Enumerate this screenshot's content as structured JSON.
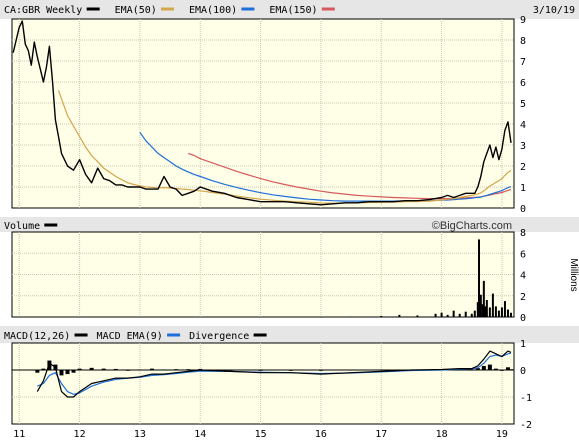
{
  "chart_data": [
    {
      "type": "line",
      "panel": "price",
      "title": "CA:GBR Weekly",
      "date_label": "3/10/19",
      "x_ticks": [
        "11",
        "12",
        "13",
        "14",
        "15",
        "16",
        "17",
        "18",
        "19"
      ],
      "ylim": [
        0,
        9
      ],
      "y_ticks": [
        0,
        1,
        2,
        3,
        4,
        5,
        6,
        7,
        8,
        9
      ],
      "grid": true,
      "legend_position": "top",
      "x": [
        10.9,
        11.0,
        11.05,
        11.1,
        11.15,
        11.2,
        11.25,
        11.3,
        11.35,
        11.4,
        11.45,
        11.5,
        11.55,
        11.6,
        11.65,
        11.7,
        11.75,
        11.8,
        11.9,
        12.0,
        12.1,
        12.2,
        12.3,
        12.4,
        12.5,
        12.6,
        12.7,
        12.8,
        12.9,
        13.0,
        13.1,
        13.2,
        13.3,
        13.4,
        13.5,
        13.6,
        13.7,
        13.8,
        13.9,
        14.0,
        14.2,
        14.4,
        14.6,
        14.8,
        15.0,
        15.2,
        15.4,
        15.6,
        15.8,
        16.0,
        16.2,
        16.4,
        16.6,
        16.8,
        17.0,
        17.2,
        17.4,
        17.6,
        17.8,
        18.0,
        18.1,
        18.2,
        18.3,
        18.4,
        18.5,
        18.55,
        18.6,
        18.65,
        18.7,
        18.75,
        18.8,
        18.85,
        18.9,
        18.95,
        19.0,
        19.05,
        19.1,
        19.15
      ],
      "series": [
        {
          "name": "CA:GBR Weekly",
          "color": "#000000",
          "values": [
            7.4,
            8.6,
            8.9,
            7.8,
            7.5,
            6.8,
            7.9,
            7.2,
            6.6,
            6.0,
            6.7,
            7.7,
            6.1,
            4.2,
            3.4,
            2.6,
            2.3,
            2.0,
            1.8,
            2.3,
            1.6,
            1.2,
            1.9,
            1.4,
            1.3,
            1.1,
            1.1,
            1.0,
            1.0,
            1.0,
            0.9,
            0.9,
            0.9,
            1.5,
            1.0,
            0.9,
            0.6,
            0.7,
            0.8,
            1.0,
            0.8,
            0.7,
            0.5,
            0.4,
            0.3,
            0.3,
            0.3,
            0.25,
            0.2,
            0.15,
            0.2,
            0.25,
            0.25,
            0.3,
            0.3,
            0.3,
            0.35,
            0.35,
            0.4,
            0.5,
            0.6,
            0.5,
            0.6,
            0.7,
            0.7,
            0.7,
            1.0,
            1.5,
            2.2,
            2.6,
            3.0,
            2.4,
            2.9,
            2.3,
            2.8,
            3.7,
            4.1,
            3.1
          ]
        },
        {
          "name": "EMA(50)",
          "color": "#d4a54c",
          "values": [
            null,
            null,
            null,
            null,
            null,
            null,
            null,
            null,
            null,
            null,
            null,
            null,
            null,
            null,
            5.6,
            5.2,
            4.8,
            4.4,
            3.9,
            3.4,
            2.9,
            2.5,
            2.2,
            1.9,
            1.7,
            1.5,
            1.35,
            1.2,
            1.12,
            1.05,
            1.0,
            0.98,
            0.96,
            0.97,
            0.95,
            0.93,
            0.9,
            0.88,
            0.85,
            0.82,
            0.74,
            0.66,
            0.57,
            0.49,
            0.42,
            0.37,
            0.33,
            0.3,
            0.27,
            0.24,
            0.23,
            0.24,
            0.25,
            0.26,
            0.27,
            0.28,
            0.3,
            0.31,
            0.33,
            0.38,
            0.42,
            0.45,
            0.5,
            0.55,
            0.6,
            0.63,
            0.67,
            0.72,
            0.82,
            0.93,
            1.05,
            1.13,
            1.22,
            1.3,
            1.4,
            1.55,
            1.7,
            1.78
          ]
        },
        {
          "name": "EMA(100)",
          "color": "#1e6fd9",
          "values": [
            null,
            null,
            null,
            null,
            null,
            null,
            null,
            null,
            null,
            null,
            null,
            null,
            null,
            null,
            null,
            null,
            null,
            null,
            null,
            null,
            null,
            null,
            null,
            null,
            null,
            null,
            null,
            null,
            null,
            3.6,
            3.2,
            2.9,
            2.6,
            2.4,
            2.2,
            2.0,
            1.85,
            1.72,
            1.6,
            1.5,
            1.3,
            1.13,
            0.98,
            0.85,
            0.73,
            0.63,
            0.55,
            0.48,
            0.42,
            0.38,
            0.35,
            0.33,
            0.33,
            0.33,
            0.33,
            0.33,
            0.34,
            0.34,
            0.35,
            0.37,
            0.38,
            0.4,
            0.42,
            0.44,
            0.47,
            0.49,
            0.5,
            0.52,
            0.56,
            0.6,
            0.65,
            0.69,
            0.74,
            0.78,
            0.83,
            0.9,
            0.97,
            1.02
          ]
        },
        {
          "name": "EMA(150)",
          "color": "#d65a5a",
          "values": [
            null,
            null,
            null,
            null,
            null,
            null,
            null,
            null,
            null,
            null,
            null,
            null,
            null,
            null,
            null,
            null,
            null,
            null,
            null,
            null,
            null,
            null,
            null,
            null,
            null,
            null,
            null,
            null,
            null,
            null,
            null,
            null,
            null,
            null,
            null,
            null,
            null,
            2.6,
            2.5,
            2.35,
            2.15,
            1.95,
            1.75,
            1.57,
            1.4,
            1.25,
            1.12,
            1.0,
            0.9,
            0.8,
            0.72,
            0.66,
            0.6,
            0.56,
            0.53,
            0.5,
            0.48,
            0.46,
            0.45,
            0.45,
            0.45,
            0.46,
            0.47,
            0.48,
            0.5,
            0.51,
            0.52,
            0.53,
            0.56,
            0.59,
            0.62,
            0.65,
            0.68,
            0.71,
            0.74,
            0.79,
            0.84,
            0.88
          ]
        }
      ]
    },
    {
      "type": "bar",
      "panel": "volume",
      "title": "Volume",
      "watermark": "©BigCharts.com",
      "ylabel": "Millions",
      "ylim": [
        0,
        8
      ],
      "y_ticks": [
        0,
        2,
        4,
        6,
        8
      ],
      "grid": true,
      "series": [
        {
          "name": "Volume",
          "color": "#000000",
          "x": [
            11.0,
            11.5,
            12.0,
            12.5,
            13.0,
            13.5,
            14.0,
            14.5,
            15.0,
            15.5,
            16.0,
            16.5,
            17.0,
            17.3,
            17.6,
            17.9,
            18.0,
            18.1,
            18.2,
            18.3,
            18.4,
            18.5,
            18.55,
            18.6,
            18.62,
            18.65,
            18.68,
            18.7,
            18.72,
            18.75,
            18.8,
            18.85,
            18.9,
            18.95,
            19.0,
            19.05,
            19.1,
            19.15
          ],
          "values": [
            0.03,
            0.04,
            0.03,
            0.02,
            0.03,
            0.03,
            0.02,
            0.03,
            0.02,
            0.03,
            0.04,
            0.05,
            0.1,
            0.2,
            0.15,
            0.3,
            0.4,
            0.2,
            0.6,
            0.3,
            0.5,
            0.3,
            0.6,
            1.4,
            7.3,
            2.1,
            1.2,
            3.4,
            1.0,
            1.6,
            0.9,
            2.2,
            1.0,
            0.6,
            0.9,
            1.5,
            0.7,
            0.4
          ]
        }
      ]
    },
    {
      "type": "line",
      "panel": "macd",
      "title": "MACD(12,26)",
      "ylim": [
        -2,
        1
      ],
      "y_ticks": [
        -2,
        -1,
        0,
        1
      ],
      "grid": true,
      "x": [
        11.3,
        11.4,
        11.5,
        11.6,
        11.7,
        11.8,
        11.9,
        12.0,
        12.2,
        12.4,
        12.6,
        12.8,
        13.0,
        13.2,
        13.4,
        13.6,
        13.8,
        14.0,
        14.5,
        15.0,
        15.5,
        16.0,
        16.5,
        17.0,
        17.5,
        18.0,
        18.3,
        18.5,
        18.6,
        18.7,
        18.8,
        18.9,
        19.0,
        19.1,
        19.15
      ],
      "series": [
        {
          "name": "MACD(12,26)",
          "color": "#000000",
          "values": [
            -0.8,
            -0.4,
            0.25,
            0.1,
            -0.8,
            -1.0,
            -1.0,
            -0.8,
            -0.5,
            -0.4,
            -0.3,
            -0.3,
            -0.25,
            -0.15,
            -0.15,
            -0.1,
            -0.05,
            0.0,
            -0.05,
            -0.1,
            -0.1,
            -0.15,
            -0.1,
            -0.05,
            0.0,
            0.02,
            0.05,
            0.05,
            0.15,
            0.4,
            0.7,
            0.6,
            0.5,
            0.7,
            0.65
          ]
        },
        {
          "name": "MACD EMA(9)",
          "color": "#1e6fd9",
          "values": [
            -0.6,
            -0.5,
            -0.2,
            -0.1,
            -0.5,
            -0.8,
            -0.9,
            -0.85,
            -0.6,
            -0.45,
            -0.35,
            -0.3,
            -0.27,
            -0.2,
            -0.17,
            -0.13,
            -0.08,
            -0.04,
            -0.05,
            -0.08,
            -0.1,
            -0.13,
            -0.11,
            -0.07,
            -0.02,
            0.0,
            0.03,
            0.04,
            0.08,
            0.25,
            0.5,
            0.55,
            0.5,
            0.6,
            0.62
          ]
        },
        {
          "name": "Divergence",
          "color": "#000000",
          "values": [
            -0.1,
            0.05,
            0.35,
            0.2,
            -0.2,
            -0.15,
            -0.1,
            0.05,
            0.08,
            0.05,
            0.04,
            0.0,
            0.02,
            0.05,
            0.02,
            0.03,
            0.03,
            0.04,
            0.0,
            -0.02,
            0.0,
            -0.02,
            0.01,
            0.02,
            0.02,
            0.02,
            0.02,
            0.01,
            0.07,
            0.15,
            0.2,
            0.05,
            0.0,
            0.1,
            0.03
          ]
        }
      ]
    }
  ],
  "legend": [
    {
      "label": "CA:GBR Weekly",
      "color": "#000000"
    },
    {
      "label": "EMA(50)",
      "color": "#d4a54c"
    },
    {
      "label": "EMA(100)",
      "color": "#1e6fd9"
    },
    {
      "label": "EMA(150)",
      "color": "#d65a5a"
    }
  ],
  "macd_legend": [
    {
      "label": "MACD(12,26)",
      "color": "#000000"
    },
    {
      "label": "MACD EMA(9)",
      "color": "#1e6fd9"
    },
    {
      "label": "Divergence",
      "color": "#000000"
    }
  ],
  "colors": {
    "plot_bg": "#ffffe8",
    "header_bg": "#e6e6e6",
    "grid": "#c8c8b4"
  }
}
